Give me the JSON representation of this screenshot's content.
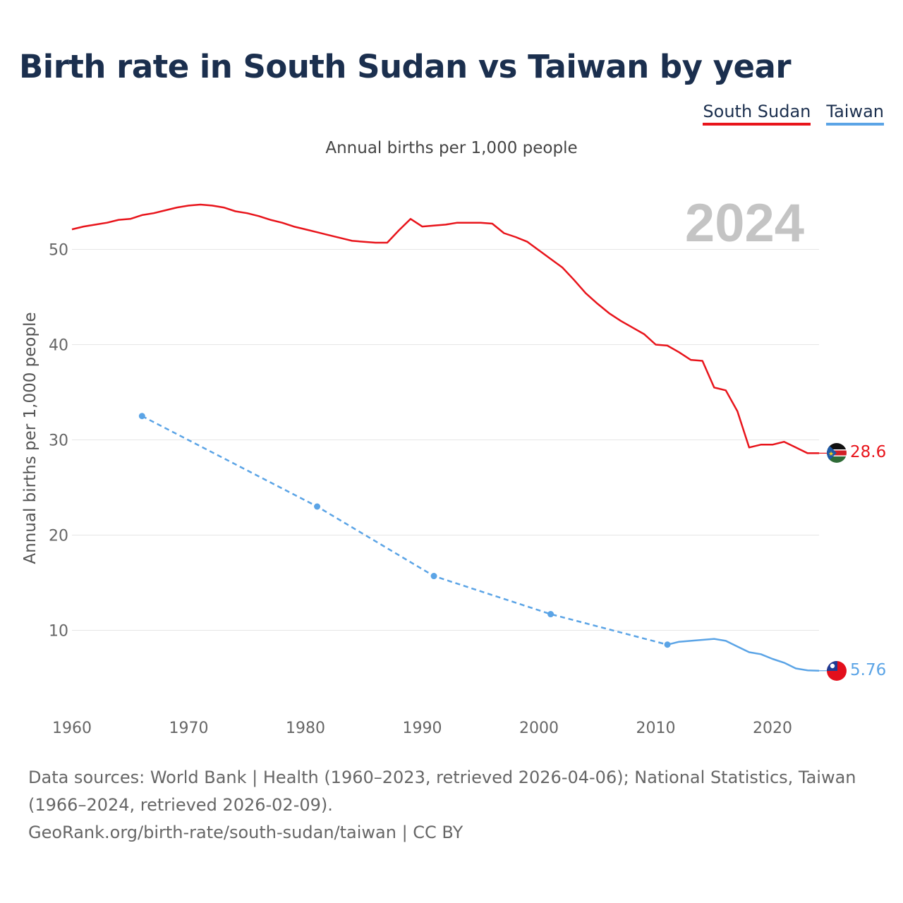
{
  "title": "Birth rate in South Sudan vs Taiwan by year",
  "subtitle": "Annual births per 1,000 people",
  "legend": [
    {
      "label": "South Sudan",
      "color": "#e8141b"
    },
    {
      "label": "Taiwan",
      "color": "#5ba4e6"
    }
  ],
  "year_label": "2024",
  "footer": {
    "sources": "Data sources: World Bank | Health (1960–2023, retrieved 2026-04-06); National Statistics, Taiwan (1966–2024, retrieved 2026-02-09).",
    "link": "GeoRank.org/birth-rate/south-sudan/taiwan | CC BY"
  },
  "chart_data": {
    "type": "line",
    "title": "Birth rate in South Sudan vs Taiwan by year",
    "xlabel": "",
    "ylabel": "Annual births per 1,000 people",
    "xlim": [
      1960,
      2024
    ],
    "ylim": [
      0,
      55
    ],
    "x_ticks": [
      1960,
      1970,
      1980,
      1990,
      2000,
      2010,
      2020
    ],
    "y_ticks": [
      10,
      20,
      30,
      40,
      50
    ],
    "grid": true,
    "series": [
      {
        "name": "South Sudan",
        "color": "#e8141b",
        "style": "solid",
        "end_label": "28.6",
        "end_value": 28.6,
        "points": [
          [
            1960,
            52.1
          ],
          [
            1961,
            52.4
          ],
          [
            1962,
            52.6
          ],
          [
            1963,
            52.8
          ],
          [
            1964,
            53.1
          ],
          [
            1965,
            53.2
          ],
          [
            1966,
            53.6
          ],
          [
            1967,
            53.8
          ],
          [
            1968,
            54.1
          ],
          [
            1969,
            54.4
          ],
          [
            1970,
            54.6
          ],
          [
            1971,
            54.7
          ],
          [
            1972,
            54.6
          ],
          [
            1973,
            54.4
          ],
          [
            1974,
            54.0
          ],
          [
            1975,
            53.8
          ],
          [
            1976,
            53.5
          ],
          [
            1977,
            53.1
          ],
          [
            1978,
            52.8
          ],
          [
            1979,
            52.4
          ],
          [
            1980,
            52.1
          ],
          [
            1981,
            51.8
          ],
          [
            1982,
            51.5
          ],
          [
            1983,
            51.2
          ],
          [
            1984,
            50.9
          ],
          [
            1985,
            50.8
          ],
          [
            1986,
            50.7
          ],
          [
            1987,
            50.7
          ],
          [
            1988,
            52.0
          ],
          [
            1989,
            53.2
          ],
          [
            1990,
            52.4
          ],
          [
            1991,
            52.5
          ],
          [
            1992,
            52.6
          ],
          [
            1993,
            52.8
          ],
          [
            1994,
            52.8
          ],
          [
            1995,
            52.8
          ],
          [
            1996,
            52.7
          ],
          [
            1997,
            51.7
          ],
          [
            1998,
            51.3
          ],
          [
            1999,
            50.8
          ],
          [
            2000,
            49.9
          ],
          [
            2001,
            49.0
          ],
          [
            2002,
            48.1
          ],
          [
            2003,
            46.8
          ],
          [
            2004,
            45.4
          ],
          [
            2005,
            44.3
          ],
          [
            2006,
            43.3
          ],
          [
            2007,
            42.5
          ],
          [
            2008,
            41.8
          ],
          [
            2009,
            41.1
          ],
          [
            2010,
            40.0
          ],
          [
            2011,
            39.9
          ],
          [
            2012,
            39.2
          ],
          [
            2013,
            38.4
          ],
          [
            2014,
            38.3
          ],
          [
            2015,
            35.5
          ],
          [
            2016,
            35.2
          ],
          [
            2017,
            33.0
          ],
          [
            2018,
            29.2
          ],
          [
            2019,
            29.5
          ],
          [
            2020,
            29.5
          ],
          [
            2021,
            29.8
          ],
          [
            2022,
            29.2
          ],
          [
            2023,
            28.6
          ],
          [
            2024,
            28.6
          ]
        ]
      },
      {
        "name": "Taiwan",
        "color": "#5ba4e6",
        "style": "dashed until 2011, then solid",
        "end_label": "5.76",
        "end_value": 5.76,
        "points": [
          [
            1966,
            32.5
          ],
          [
            1981,
            23.0
          ],
          [
            1991,
            15.7
          ],
          [
            2001,
            11.7
          ],
          [
            2011,
            8.5
          ],
          [
            2012,
            8.8
          ],
          [
            2013,
            8.9
          ],
          [
            2014,
            9.0
          ],
          [
            2015,
            9.1
          ],
          [
            2016,
            8.9
          ],
          [
            2017,
            8.3
          ],
          [
            2018,
            7.7
          ],
          [
            2019,
            7.5
          ],
          [
            2020,
            7.0
          ],
          [
            2021,
            6.6
          ],
          [
            2022,
            6.0
          ],
          [
            2023,
            5.8
          ],
          [
            2024,
            5.76
          ]
        ],
        "markers": [
          1966,
          1981,
          1991,
          2001,
          2011
        ]
      }
    ]
  }
}
